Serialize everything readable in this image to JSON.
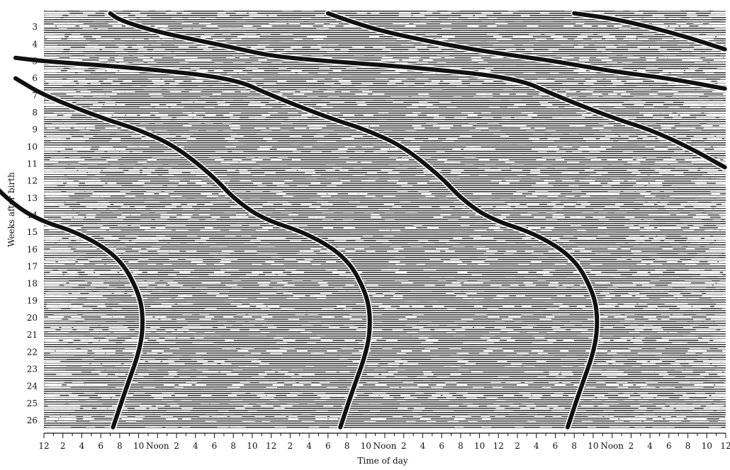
{
  "chart_data": {
    "type": "raster",
    "title": "",
    "xlabel": "Time of day",
    "ylabel": "Weeks after birth",
    "x_tick_labels": [
      "12",
      "2",
      "4",
      "6",
      "8",
      "10",
      "Noon",
      "2",
      "4",
      "6",
      "8",
      "10",
      "12",
      "2",
      "4",
      "6",
      "8",
      "10",
      "Noon",
      "2",
      "4",
      "6",
      "8",
      "10",
      "12",
      "2",
      "4",
      "6",
      "8",
      "10",
      "Noon",
      "2",
      "4",
      "6",
      "8",
      "10",
      "12"
    ],
    "x_range_hours": [
      0,
      72
    ],
    "y_tick_labels": [
      "3",
      "4",
      "5",
      "6",
      "7",
      "8",
      "9",
      "10",
      "11",
      "12",
      "13",
      "14",
      "15",
      "16",
      "17",
      "18",
      "19",
      "20",
      "21",
      "22",
      "23",
      "24",
      "25",
      "26"
    ],
    "y_range_weeks": [
      2,
      26.5
    ],
    "series": [
      {
        "points": [
          [
            7.3,
            26.4
          ],
          [
            8.5,
            24.4
          ],
          [
            10.2,
            21.8
          ],
          [
            10.5,
            20
          ],
          [
            10,
            18.5
          ],
          [
            8,
            16.5
          ],
          [
            4,
            15.1
          ],
          [
            -1,
            14.2
          ],
          [
            -4,
            13
          ],
          [
            -6,
            11.8
          ]
        ]
      },
      {
        "points": [
          [
            31.3,
            26.4
          ],
          [
            32.5,
            24.4
          ],
          [
            34.2,
            21.8
          ],
          [
            34.5,
            20
          ],
          [
            34,
            18.5
          ],
          [
            32,
            16.5
          ],
          [
            28,
            15.1
          ],
          [
            23,
            14.2
          ],
          [
            20,
            13
          ],
          [
            18,
            11.8
          ],
          [
            14,
            10
          ],
          [
            10,
            9
          ],
          [
            6,
            8.3
          ],
          [
            0,
            7
          ],
          [
            -3,
            6
          ]
        ]
      },
      {
        "points": [
          [
            55.3,
            26.4
          ],
          [
            56.5,
            24.4
          ],
          [
            58.2,
            21.8
          ],
          [
            58.5,
            20
          ],
          [
            58,
            18.5
          ],
          [
            56,
            16.5
          ],
          [
            52,
            15.1
          ],
          [
            47,
            14.2
          ],
          [
            44,
            13
          ],
          [
            42,
            11.8
          ],
          [
            38,
            10
          ],
          [
            34,
            9
          ],
          [
            30,
            8.3
          ],
          [
            24,
            7
          ],
          [
            20,
            6
          ],
          [
            10,
            5.4
          ],
          [
            0,
            5
          ],
          [
            -3,
            4.8
          ]
        ]
      },
      {
        "points": [
          [
            71.9,
            11.2
          ],
          [
            68,
            10
          ],
          [
            64,
            9
          ],
          [
            60,
            8.3
          ],
          [
            54,
            7
          ],
          [
            50,
            6
          ],
          [
            40,
            5.4
          ],
          [
            30,
            5
          ],
          [
            24,
            4.7
          ],
          [
            20,
            4.2
          ],
          [
            12,
            3.3
          ],
          [
            8,
            2.6
          ],
          [
            7,
            2.2
          ]
        ]
      },
      {
        "points": [
          [
            71.9,
            6.6
          ],
          [
            66,
            6
          ],
          [
            60,
            5.6
          ],
          [
            54,
            5
          ],
          [
            50,
            4.7
          ],
          [
            44,
            4.2
          ],
          [
            36,
            3.3
          ],
          [
            32,
            2.6
          ],
          [
            30,
            2.2
          ]
        ]
      },
      {
        "points": [
          [
            71.9,
            4.3
          ],
          [
            68,
            3.6
          ],
          [
            64,
            3
          ],
          [
            60,
            2.5
          ],
          [
            56,
            2.2
          ]
        ]
      }
    ]
  }
}
